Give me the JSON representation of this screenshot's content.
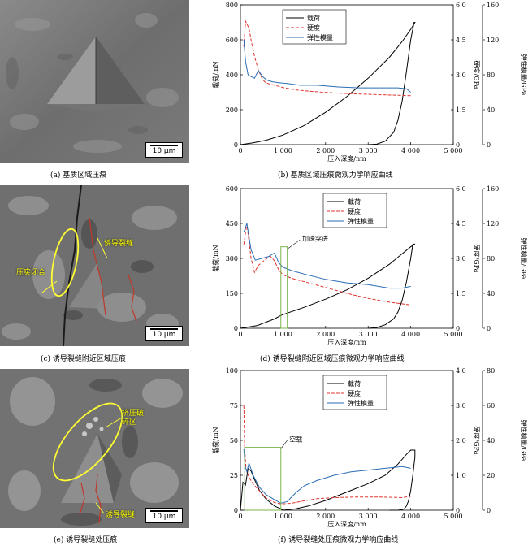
{
  "panels": [
    {
      "id": "a",
      "image_caption": "(a) 基质区域压痕",
      "scale_bar": "10 μm",
      "annotations": [],
      "chart_caption": "(b) 基质区域压痕微观力学响应曲线",
      "chart_annotation": ""
    },
    {
      "id": "c",
      "image_caption": "(c) 诱导裂缝附近区域压痕",
      "scale_bar": "10 μm",
      "annotations": [
        "压实闭合",
        "诱导裂缝"
      ],
      "chart_caption": "(d) 诱导裂缝附近区域压痕微观力学响应曲线",
      "chart_annotation": "加速突进"
    },
    {
      "id": "e",
      "image_caption": "(e) 诱导裂缝处压痕",
      "scale_bar": "10 μm",
      "annotations": [
        "挤压破碎区",
        "诱导裂缝"
      ],
      "chart_caption": "(f) 诱导裂缝处压痕微观力学响应曲线",
      "chart_annotation": "空载"
    }
  ],
  "chart_data": [
    {
      "type": "line",
      "xlabel": "压入深度/nm",
      "ylabel_left": "载荷/mN",
      "ylabel_right1": "硬度/GPa",
      "ylabel_right2": "弹性模量/GPa",
      "xlim": [
        0,
        5000
      ],
      "x_ticks": [
        "0",
        "1 000",
        "2 000",
        "3 000",
        "4 000",
        "5 000"
      ],
      "left_lim": [
        0,
        800
      ],
      "left_ticks": [
        "0",
        "200",
        "400",
        "600",
        "800"
      ],
      "h_lim": [
        0,
        6
      ],
      "h_ticks": [
        "0",
        "1.5",
        "3.0",
        "4.5",
        "6.0"
      ],
      "e_lim": [
        0,
        160
      ],
      "e_ticks": [
        "0",
        "40",
        "80",
        "120",
        "160"
      ],
      "legend_position": "top-center",
      "series": [
        {
          "name": "载荷",
          "axis": "load",
          "color": "#000000",
          "dash": "",
          "x": [
            0,
            300,
            600,
            1000,
            1500,
            2000,
            2500,
            3000,
            3500,
            3800,
            4000,
            4100,
            4080,
            4000,
            3900,
            3800,
            3700,
            3600,
            3400,
            3200,
            3000
          ],
          "y": [
            0,
            10,
            25,
            55,
            110,
            185,
            275,
            380,
            500,
            590,
            660,
            700,
            700,
            600,
            420,
            250,
            140,
            70,
            20,
            3,
            0
          ]
        },
        {
          "name": "硬度",
          "axis": "hardness",
          "color": "#e0332e",
          "dash": "4,2",
          "x": [
            80,
            120,
            200,
            260,
            330,
            420,
            520,
            600,
            700,
            800,
            1000,
            1300,
            1700,
            2200,
            2700,
            3200,
            3700,
            4000
          ],
          "y": [
            4.2,
            5.3,
            5.0,
            4.4,
            3.8,
            3.2,
            2.8,
            2.65,
            2.6,
            2.55,
            2.45,
            2.35,
            2.28,
            2.22,
            2.18,
            2.15,
            2.12,
            2.1
          ]
        },
        {
          "name": "弹性模量",
          "axis": "modulus",
          "color": "#2a6db5",
          "dash": "",
          "x": [
            80,
            120,
            180,
            250,
            330,
            420,
            520,
            620,
            750,
            900,
            1100,
            1400,
            1800,
            2300,
            2800,
            3300,
            3700,
            3900,
            4000
          ],
          "y": [
            120,
            95,
            80,
            78,
            76,
            85,
            78,
            74,
            72,
            71,
            70,
            68,
            68,
            66,
            65,
            65,
            65,
            64,
            60
          ]
        }
      ]
    },
    {
      "type": "line",
      "xlabel": "压入深度/nm",
      "ylabel_left": "载荷/mN",
      "ylabel_right1": "硬度/GPa",
      "ylabel_right2": "弹性模量/GPa",
      "xlim": [
        0,
        5000
      ],
      "x_ticks": [
        "0",
        "1 000",
        "2 000",
        "3 000",
        "4 000",
        "5 000"
      ],
      "left_lim": [
        0,
        600
      ],
      "left_ticks": [
        "0",
        "150",
        "300",
        "450",
        "600"
      ],
      "h_lim": [
        0,
        6
      ],
      "h_ticks": [
        "0",
        "1.5",
        "3.0",
        "4.5",
        "6.0"
      ],
      "e_lim": [
        0,
        160
      ],
      "e_ticks": [
        "0",
        "40",
        "80",
        "120",
        "160"
      ],
      "legend_position": "top-right",
      "series": [
        {
          "name": "载荷",
          "axis": "load",
          "color": "#000000",
          "dash": "",
          "x": [
            0,
            400,
            800,
            950,
            1050,
            1500,
            2000,
            2500,
            3000,
            3500,
            3800,
            4000,
            4100,
            4050,
            4000,
            3900,
            3800,
            3700,
            3600,
            3400,
            3200,
            3000
          ],
          "y": [
            0,
            12,
            40,
            55,
            62,
            90,
            125,
            165,
            215,
            275,
            320,
            350,
            362,
            360,
            300,
            200,
            120,
            70,
            40,
            15,
            3,
            0
          ]
        },
        {
          "name": "硬度",
          "axis": "hardness",
          "color": "#e0332e",
          "dash": "4,2",
          "x": [
            80,
            150,
            250,
            330,
            420,
            550,
            700,
            800,
            900,
            1000,
            1200,
            1500,
            2000,
            2500,
            3000,
            3500,
            4000
          ],
          "y": [
            3.6,
            4.5,
            3.0,
            2.4,
            2.7,
            2.9,
            3.1,
            2.9,
            2.5,
            2.3,
            2.15,
            2.0,
            1.75,
            1.5,
            1.28,
            1.12,
            1.0
          ]
        },
        {
          "name": "弹性模量",
          "axis": "modulus",
          "color": "#2a6db5",
          "dash": "",
          "x": [
            80,
            150,
            250,
            350,
            500,
            650,
            800,
            900,
            1000,
            1200,
            1500,
            2000,
            2500,
            3000,
            3500,
            3800,
            4000
          ],
          "y": [
            110,
            120,
            90,
            78,
            80,
            82,
            86,
            75,
            70,
            66,
            62,
            56,
            52,
            50,
            46,
            46,
            48
          ]
        }
      ]
    },
    {
      "type": "line",
      "xlabel": "压入深度/nm",
      "ylabel_left": "载荷/mN",
      "ylabel_right1": "硬度/GPa",
      "ylabel_right2": "弹性模量/GPa",
      "xlim": [
        0,
        5000
      ],
      "x_ticks": [
        "0",
        "1 000",
        "2 000",
        "3 000",
        "4 000",
        "5 000"
      ],
      "left_lim": [
        0,
        100
      ],
      "left_ticks": [
        "0",
        "25",
        "50",
        "75",
        "100"
      ],
      "h_lim": [
        0,
        4
      ],
      "h_ticks": [
        "0",
        "1.0",
        "2.0",
        "3.0",
        "4.0"
      ],
      "e_lim": [
        0,
        80
      ],
      "e_ticks": [
        "0",
        "20",
        "40",
        "60",
        "80"
      ],
      "legend_position": "top-right",
      "series": [
        {
          "name": "载荷",
          "axis": "load",
          "color": "#000000",
          "dash": "",
          "x": [
            0,
            60,
            120,
            180,
            250,
            330,
            450,
            600,
            800,
            950,
            1000,
            1300,
            1600,
            2000,
            2500,
            3000,
            3400,
            3700,
            3900,
            4000,
            4100,
            4100,
            4050,
            4000,
            3950,
            3900,
            3850,
            3800,
            3700,
            3500
          ],
          "y": [
            0,
            20,
            18,
            30,
            28,
            22,
            14,
            8,
            3,
            1,
            0,
            1,
            3,
            7,
            13,
            19,
            25,
            33,
            40,
            43,
            43,
            38,
            25,
            14,
            7,
            3,
            1,
            0.5,
            0,
            0
          ]
        },
        {
          "name": "硬度",
          "axis": "hardness",
          "color": "#e0332e",
          "dash": "4,2",
          "x": [
            80,
            100,
            130,
            200,
            300,
            450,
            600,
            800,
            950,
            1200,
            1500,
            1800,
            2200,
            2700,
            3200,
            3600,
            3800,
            4000
          ],
          "y": [
            3.0,
            1.8,
            1.2,
            0.95,
            0.75,
            0.55,
            0.35,
            0.22,
            0.18,
            0.2,
            0.27,
            0.33,
            0.36,
            0.38,
            0.38,
            0.37,
            0.36,
            0.4
          ]
        },
        {
          "name": "弹性模量",
          "axis": "modulus",
          "color": "#2a6db5",
          "dash": "",
          "x": [
            80,
            110,
            150,
            200,
            300,
            450,
            600,
            800,
            950,
            1100,
            1300,
            1500,
            1800,
            2200,
            2600,
            3000,
            3400,
            3800,
            4000
          ],
          "y": [
            35,
            25,
            22,
            27,
            20,
            13,
            9,
            6,
            4,
            5,
            10,
            14,
            17,
            20,
            22,
            23,
            24,
            25,
            24
          ]
        }
      ]
    }
  ]
}
